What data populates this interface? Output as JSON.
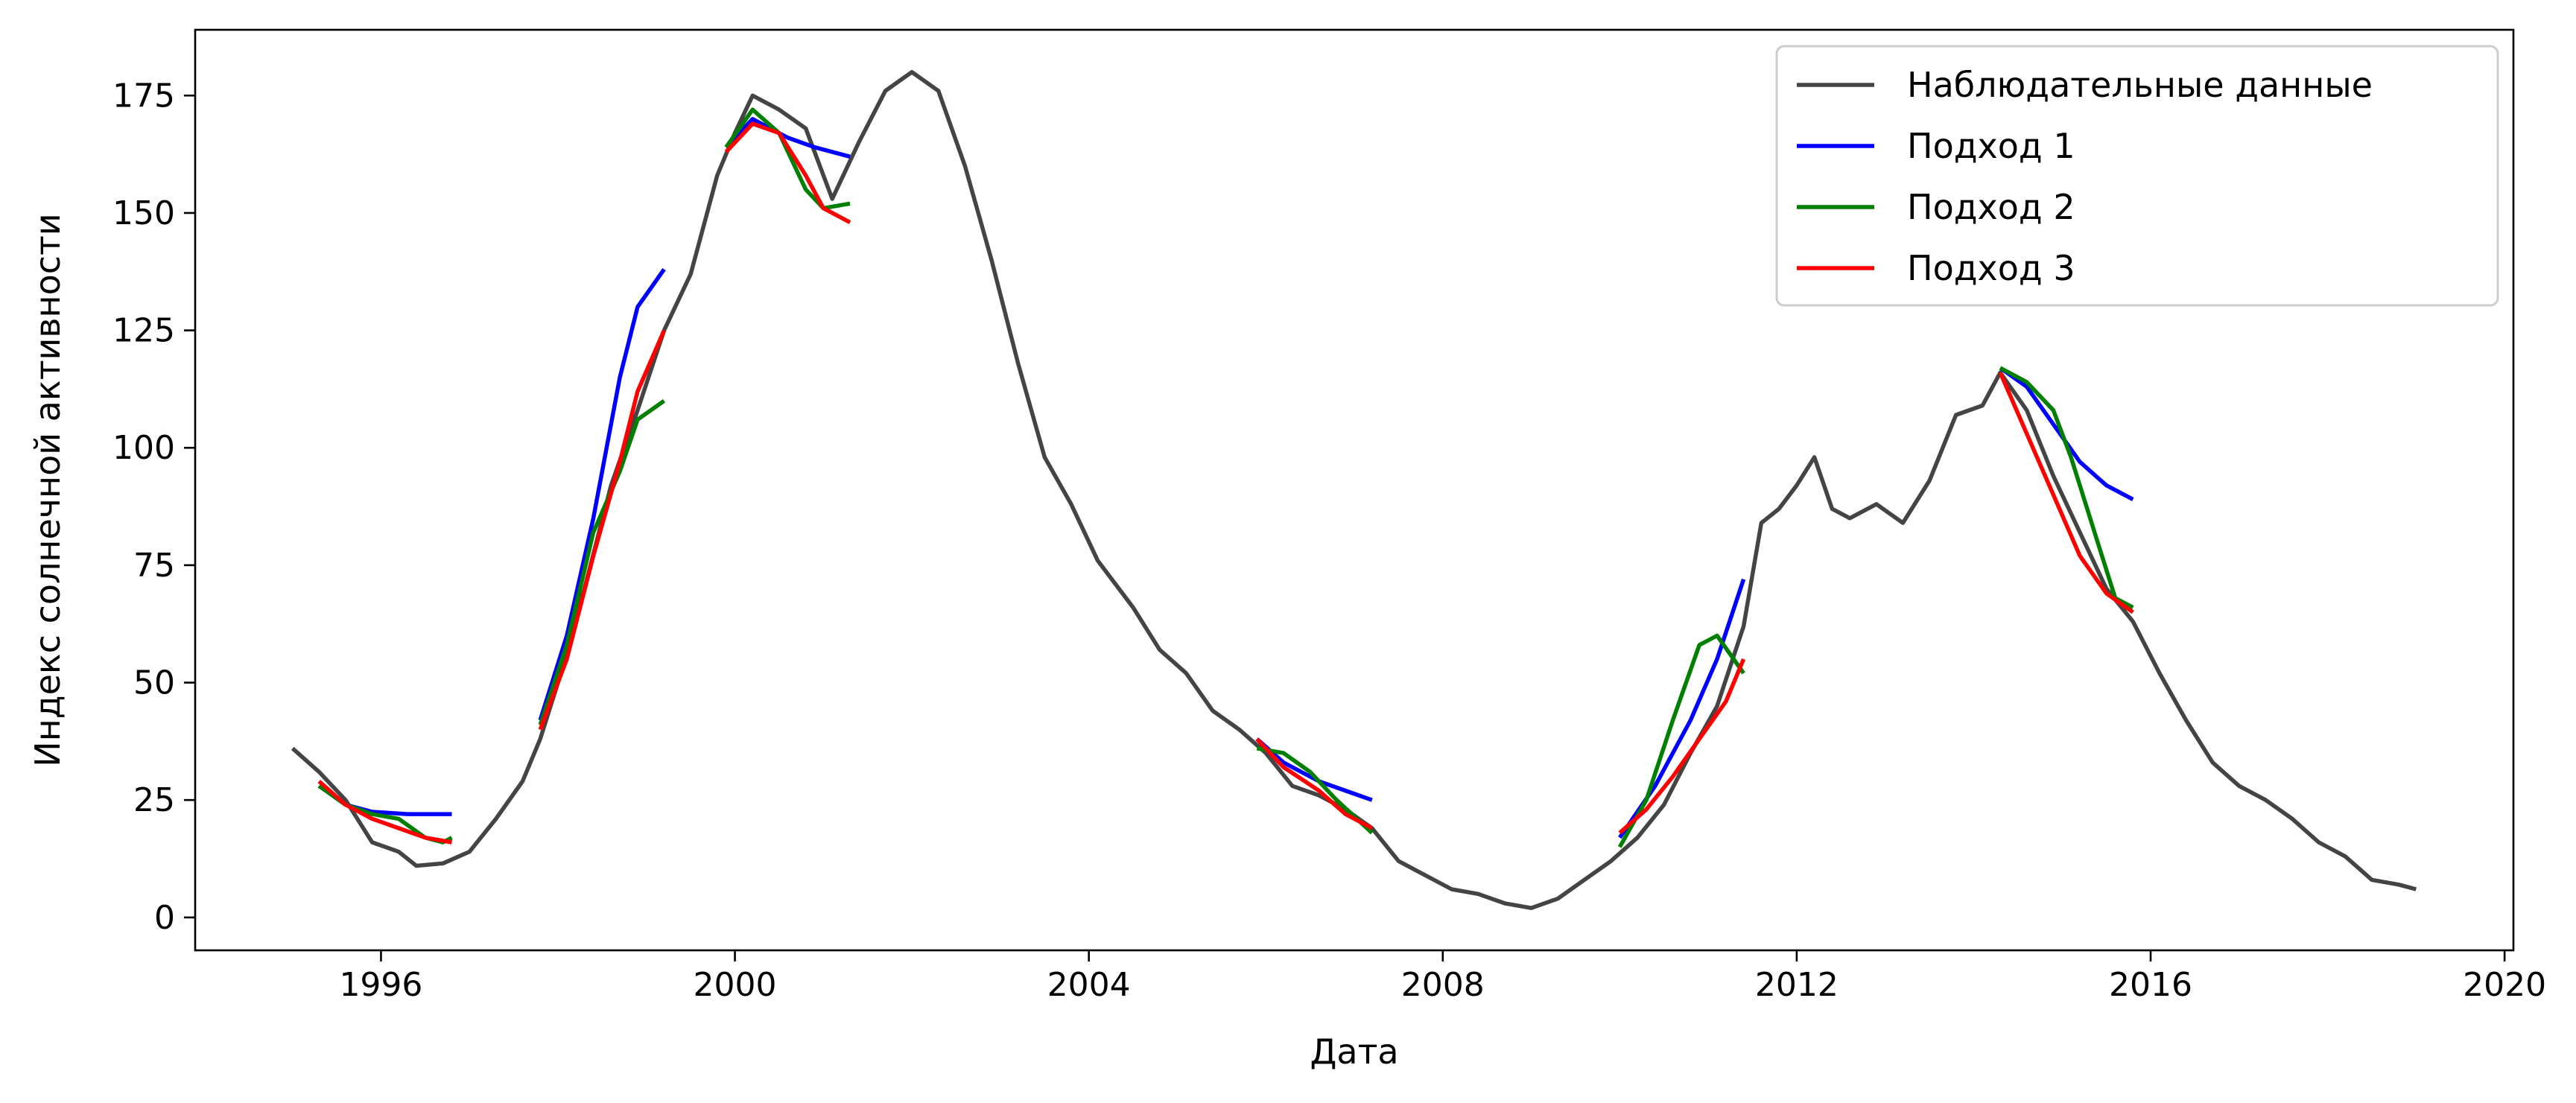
{
  "chart_data": {
    "type": "line",
    "xlabel": "Дата",
    "ylabel": "Индекс солнечной активности",
    "xlim": [
      1993.9,
      2020.1
    ],
    "ylim": [
      -7,
      189
    ],
    "x_ticks": [
      1996,
      2000,
      2004,
      2008,
      2012,
      2016,
      2020
    ],
    "y_ticks": [
      0,
      25,
      50,
      75,
      100,
      125,
      150,
      175
    ],
    "grid": false,
    "legend_position": "top-right",
    "series": [
      {
        "name": "Наблюдательные данные",
        "color": "#444444",
        "points": [
          [
            1995.0,
            36
          ],
          [
            1995.3,
            31
          ],
          [
            1995.6,
            25
          ],
          [
            1995.9,
            16
          ],
          [
            1996.2,
            14
          ],
          [
            1996.4,
            11
          ],
          [
            1996.7,
            11.5
          ],
          [
            1997.0,
            14
          ],
          [
            1997.3,
            21
          ],
          [
            1997.6,
            29
          ],
          [
            1997.8,
            38
          ],
          [
            1998.0,
            50
          ],
          [
            1998.3,
            70
          ],
          [
            1998.6,
            92
          ],
          [
            1998.9,
            108
          ],
          [
            1999.2,
            125
          ],
          [
            1999.5,
            137
          ],
          [
            1999.8,
            158
          ],
          [
            2000.0,
            167
          ],
          [
            2000.2,
            175
          ],
          [
            2000.5,
            172
          ],
          [
            2000.8,
            168
          ],
          [
            2001.1,
            153
          ],
          [
            2001.4,
            165
          ],
          [
            2001.7,
            176
          ],
          [
            2002.0,
            180
          ],
          [
            2002.3,
            176
          ],
          [
            2002.6,
            160
          ],
          [
            2002.9,
            140
          ],
          [
            2003.2,
            118
          ],
          [
            2003.5,
            98
          ],
          [
            2003.8,
            88
          ],
          [
            2004.1,
            76
          ],
          [
            2004.5,
            66
          ],
          [
            2004.8,
            57
          ],
          [
            2005.1,
            52
          ],
          [
            2005.4,
            44
          ],
          [
            2005.7,
            40
          ],
          [
            2006.0,
            35
          ],
          [
            2006.3,
            28
          ],
          [
            2006.6,
            26
          ],
          [
            2006.9,
            23
          ],
          [
            2007.2,
            19
          ],
          [
            2007.5,
            12
          ],
          [
            2007.8,
            9
          ],
          [
            2008.1,
            6
          ],
          [
            2008.4,
            5
          ],
          [
            2008.7,
            3
          ],
          [
            2009.0,
            2
          ],
          [
            2009.3,
            4
          ],
          [
            2009.6,
            8
          ],
          [
            2009.9,
            12
          ],
          [
            2010.2,
            17
          ],
          [
            2010.5,
            24
          ],
          [
            2010.8,
            35
          ],
          [
            2011.1,
            45
          ],
          [
            2011.4,
            62
          ],
          [
            2011.6,
            84
          ],
          [
            2011.8,
            87
          ],
          [
            2012.0,
            92
          ],
          [
            2012.2,
            98
          ],
          [
            2012.4,
            87
          ],
          [
            2012.6,
            85
          ],
          [
            2012.9,
            88
          ],
          [
            2013.2,
            84
          ],
          [
            2013.5,
            93
          ],
          [
            2013.8,
            107
          ],
          [
            2014.1,
            109
          ],
          [
            2014.3,
            116
          ],
          [
            2014.6,
            108
          ],
          [
            2014.9,
            94
          ],
          [
            2015.2,
            82
          ],
          [
            2015.5,
            70
          ],
          [
            2015.8,
            63
          ],
          [
            2016.1,
            52
          ],
          [
            2016.4,
            42
          ],
          [
            2016.7,
            33
          ],
          [
            2017.0,
            28
          ],
          [
            2017.3,
            25
          ],
          [
            2017.6,
            21
          ],
          [
            2017.9,
            16
          ],
          [
            2018.2,
            13
          ],
          [
            2018.5,
            8
          ],
          [
            2018.8,
            7
          ],
          [
            2019.0,
            6
          ]
        ]
      },
      {
        "name": "Подход 1",
        "color": "#0000ff",
        "segments": [
          [
            [
              1995.3,
              28
            ],
            [
              1995.6,
              24
            ],
            [
              1995.9,
              22.5
            ],
            [
              1996.3,
              22
            ],
            [
              1996.8,
              22
            ]
          ],
          [
            [
              1997.8,
              42
            ],
            [
              1998.1,
              60
            ],
            [
              1998.4,
              85
            ],
            [
              1998.7,
              115
            ],
            [
              1998.9,
              130
            ],
            [
              1999.2,
              138
            ]
          ],
          [
            [
              1999.9,
              164
            ],
            [
              2000.2,
              170
            ],
            [
              2000.6,
              166
            ],
            [
              2000.9,
              164
            ],
            [
              2001.3,
              162
            ]
          ],
          [
            [
              2005.9,
              38
            ],
            [
              2006.2,
              33
            ],
            [
              2006.6,
              29
            ],
            [
              2006.9,
              27
            ],
            [
              2007.2,
              25
            ]
          ],
          [
            [
              2010.0,
              17
            ],
            [
              2010.4,
              28
            ],
            [
              2010.8,
              42
            ],
            [
              2011.1,
              55
            ],
            [
              2011.4,
              72
            ]
          ],
          [
            [
              2014.3,
              117
            ],
            [
              2014.6,
              113
            ],
            [
              2014.9,
              105
            ],
            [
              2015.2,
              97
            ],
            [
              2015.5,
              92
            ],
            [
              2015.8,
              89
            ]
          ]
        ]
      },
      {
        "name": "Подход 2",
        "color": "#008000",
        "segments": [
          [
            [
              1995.3,
              28
            ],
            [
              1995.6,
              24
            ],
            [
              1995.9,
              22
            ],
            [
              1996.2,
              21
            ],
            [
              1996.5,
              17
            ],
            [
              1996.7,
              16
            ],
            [
              1996.8,
              17
            ]
          ],
          [
            [
              1997.8,
              41
            ],
            [
              1998.1,
              58
            ],
            [
              1998.4,
              82
            ],
            [
              1998.7,
              95
            ],
            [
              1998.9,
              106
            ],
            [
              1999.2,
              110
            ]
          ],
          [
            [
              1999.9,
              164
            ],
            [
              2000.2,
              172
            ],
            [
              2000.5,
              167
            ],
            [
              2000.8,
              155
            ],
            [
              2001.0,
              151
            ],
            [
              2001.3,
              152
            ]
          ],
          [
            [
              2005.9,
              36
            ],
            [
              2006.2,
              35
            ],
            [
              2006.5,
              31
            ],
            [
              2006.8,
              25
            ],
            [
              2007.2,
              18
            ]
          ],
          [
            [
              2010.0,
              15
            ],
            [
              2010.3,
              25
            ],
            [
              2010.6,
              42
            ],
            [
              2010.9,
              58
            ],
            [
              2011.1,
              60
            ],
            [
              2011.4,
              52
            ]
          ],
          [
            [
              2014.3,
              117
            ],
            [
              2014.6,
              114
            ],
            [
              2014.9,
              108
            ],
            [
              2015.1,
              98
            ],
            [
              2015.4,
              80
            ],
            [
              2015.6,
              68
            ],
            [
              2015.8,
              66
            ]
          ]
        ]
      },
      {
        "name": "Подход 3",
        "color": "#ff0000",
        "segments": [
          [
            [
              1995.3,
              29
            ],
            [
              1995.6,
              24
            ],
            [
              1995.9,
              21
            ],
            [
              1996.2,
              19
            ],
            [
              1996.5,
              17
            ],
            [
              1996.8,
              16
            ]
          ],
          [
            [
              1997.8,
              40
            ],
            [
              1998.1,
              55
            ],
            [
              1998.4,
              77
            ],
            [
              1998.7,
              97
            ],
            [
              1998.9,
              112
            ],
            [
              1999.2,
              125
            ]
          ],
          [
            [
              1999.9,
              163
            ],
            [
              2000.2,
              169
            ],
            [
              2000.5,
              167
            ],
            [
              2000.8,
              158
            ],
            [
              2001.0,
              151
            ],
            [
              2001.3,
              148
            ]
          ],
          [
            [
              2005.9,
              38
            ],
            [
              2006.2,
              32
            ],
            [
              2006.6,
              27
            ],
            [
              2006.9,
              22
            ],
            [
              2007.2,
              19
            ]
          ],
          [
            [
              2010.0,
              18
            ],
            [
              2010.3,
              23
            ],
            [
              2010.6,
              30
            ],
            [
              2010.9,
              38
            ],
            [
              2011.2,
              46
            ],
            [
              2011.4,
              55
            ]
          ],
          [
            [
              2014.3,
              116
            ],
            [
              2014.6,
              103
            ],
            [
              2014.9,
              90
            ],
            [
              2015.2,
              77
            ],
            [
              2015.5,
              69
            ],
            [
              2015.8,
              65
            ]
          ]
        ]
      }
    ]
  }
}
